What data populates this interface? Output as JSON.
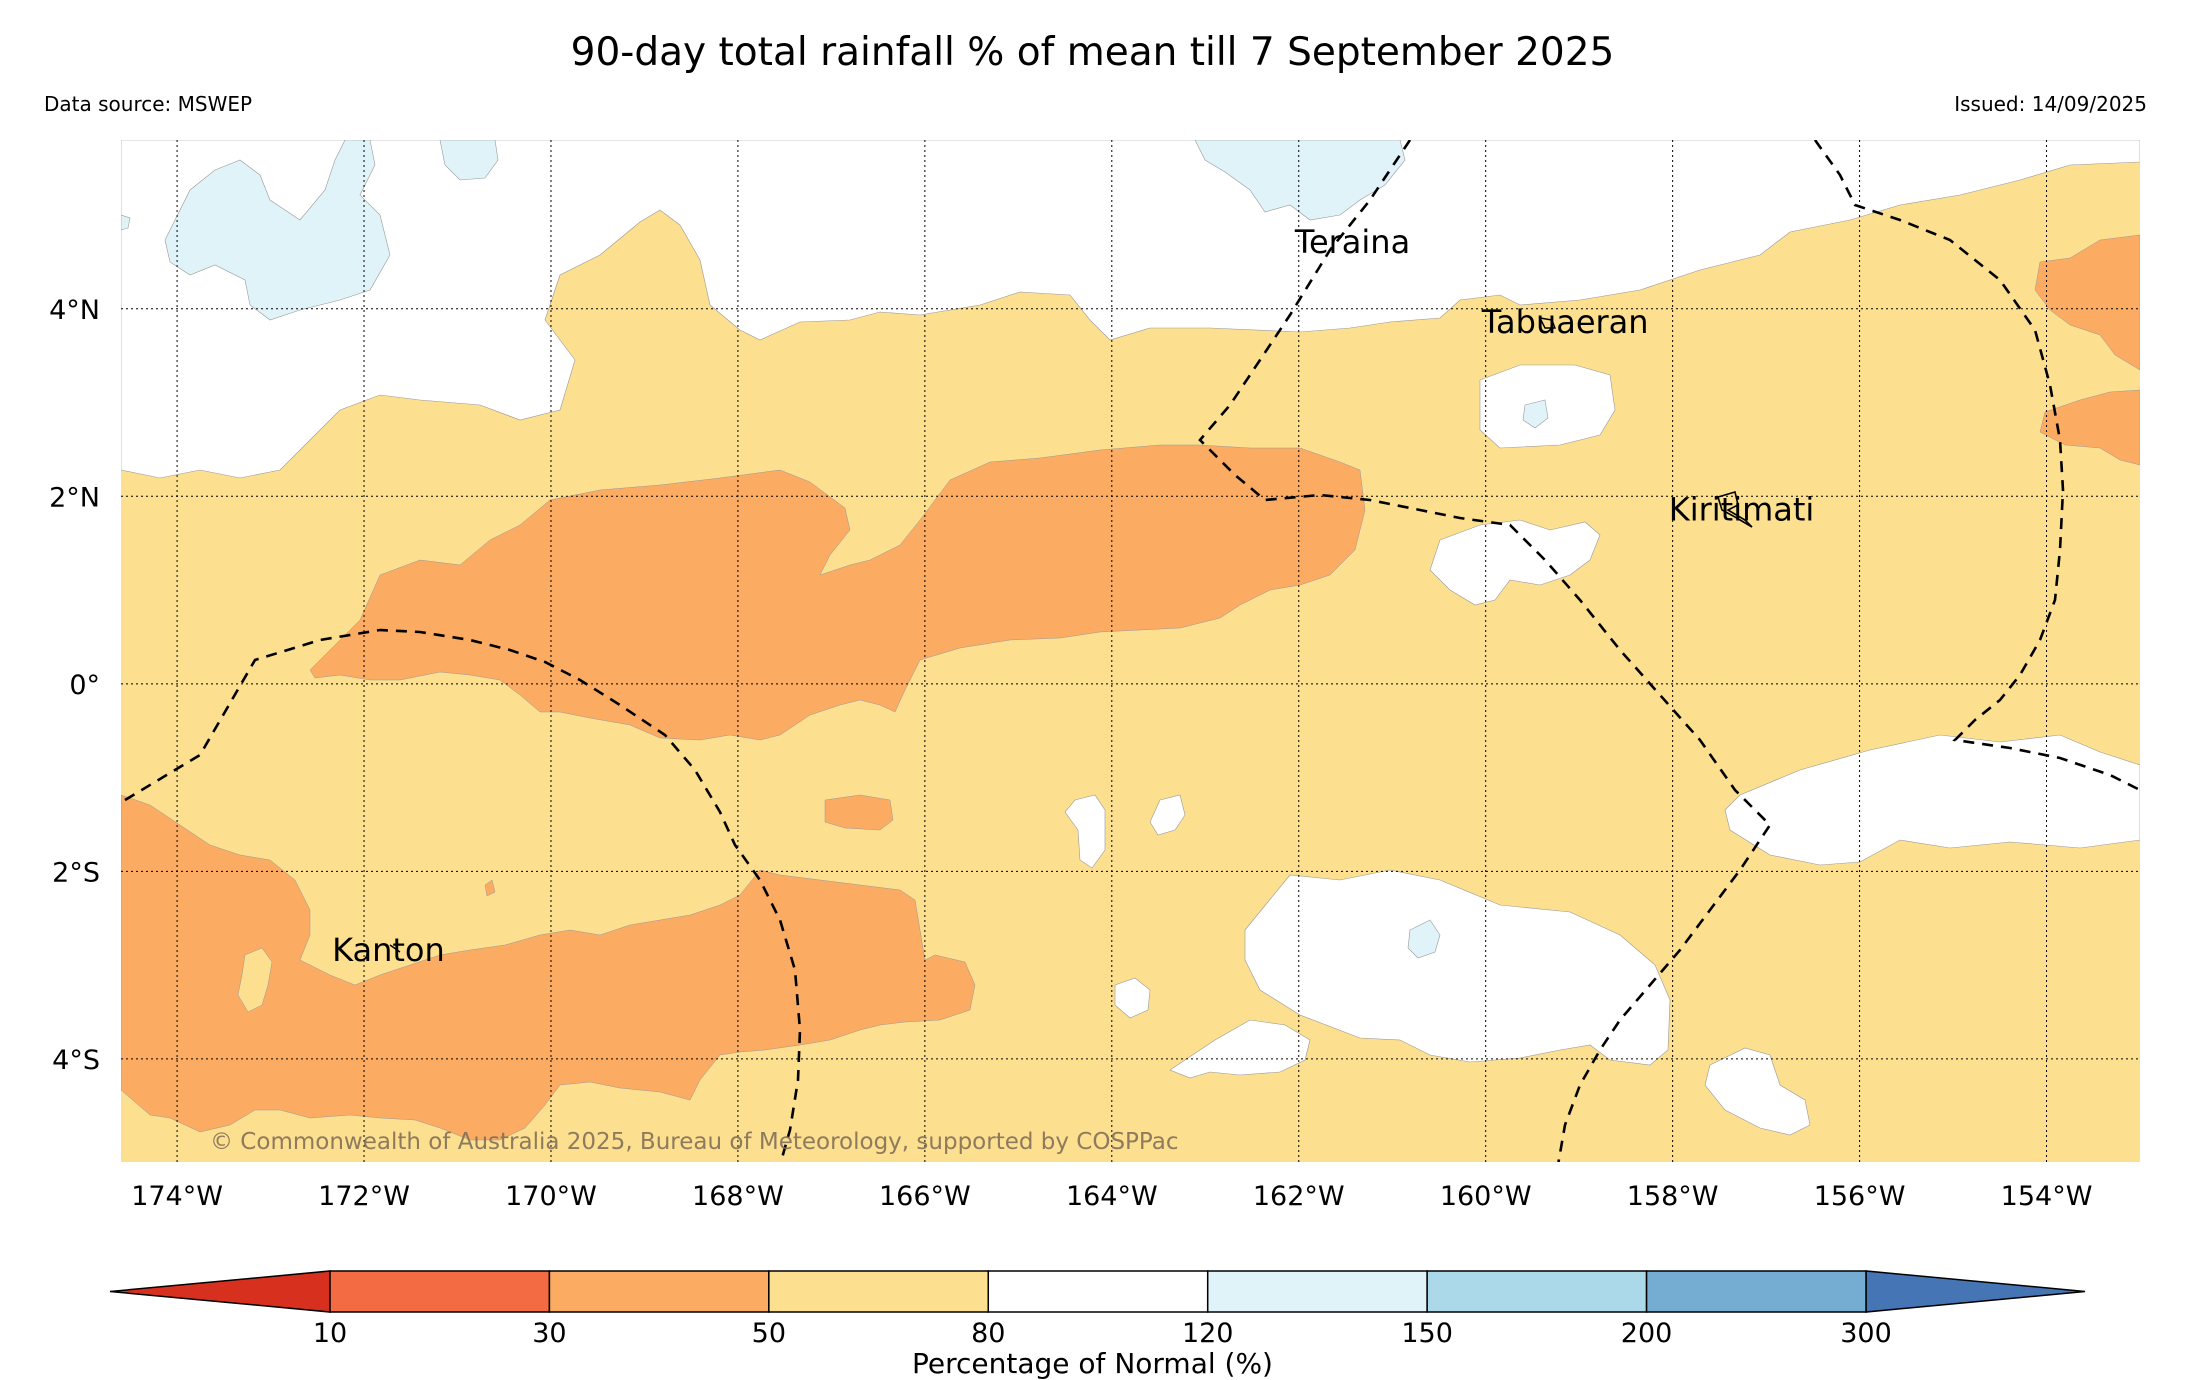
{
  "title": "90-day total rainfall % of mean till 7 September 2025",
  "data_source": "Data source: MSWEP",
  "issued": "Issued: 14/09/2025",
  "copyright": "© Commonwealth of Australia 2025, Bureau of Meteorology, supported by COSPPac",
  "map": {
    "lon_range": [
      -174.6,
      -153.0
    ],
    "lat_range": [
      -5.1,
      5.8
    ],
    "lon_ticks": [
      {
        "value": -174,
        "label": "174°W"
      },
      {
        "value": -172,
        "label": "172°W"
      },
      {
        "value": -170,
        "label": "170°W"
      },
      {
        "value": -168,
        "label": "168°W"
      },
      {
        "value": -166,
        "label": "166°W"
      },
      {
        "value": -164,
        "label": "164°W"
      },
      {
        "value": -162,
        "label": "162°W"
      },
      {
        "value": -160,
        "label": "160°W"
      },
      {
        "value": -158,
        "label": "158°W"
      },
      {
        "value": -156,
        "label": "156°W"
      },
      {
        "value": -154,
        "label": "154°W"
      }
    ],
    "lat_ticks": [
      {
        "value": 4,
        "label": "4°N"
      },
      {
        "value": 2,
        "label": "2°N"
      },
      {
        "value": 0,
        "label": "0°"
      },
      {
        "value": -2,
        "label": "2°S"
      },
      {
        "value": -4,
        "label": "4°S"
      }
    ],
    "places": [
      {
        "name": "Teraina",
        "lon": -161.4,
        "lat": 4.7
      },
      {
        "name": "Tabuaeran",
        "lon": -159.4,
        "lat": 3.85
      },
      {
        "name": "Kiritimati",
        "lon": -157.4,
        "lat": 1.85
      },
      {
        "name": "Kanton",
        "lon": -171.7,
        "lat": -2.85
      }
    ],
    "background_category": "50–80"
  },
  "colors": {
    "c10": "#d7301f",
    "c10_30": "#f26b43",
    "c30_50": "#fbab62",
    "c50_80": "#fddf90",
    "c80_120": "#ffffff",
    "c120_150": "#e0f3f8",
    "c150_200": "#abd9e9",
    "c200_300": "#74add1",
    "c300": "#4575b4"
  },
  "colorbar": {
    "label": "Percentage of Normal (%)",
    "ticks": [
      "10",
      "30",
      "50",
      "80",
      "120",
      "150",
      "200",
      "300"
    ],
    "colors": [
      "#f26b43",
      "#fbab62",
      "#fddf90",
      "#ffffff",
      "#e0f3f8",
      "#abd9e9",
      "#74add1"
    ],
    "under_color": "#d7301f",
    "over_color": "#4575b4"
  }
}
